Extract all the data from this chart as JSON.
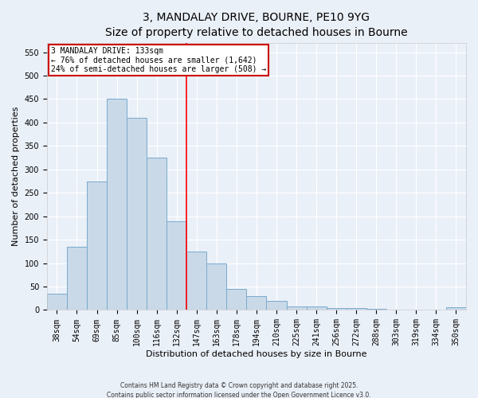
{
  "title": "3, MANDALAY DRIVE, BOURNE, PE10 9YG",
  "subtitle": "Size of property relative to detached houses in Bourne",
  "xlabel": "Distribution of detached houses by size in Bourne",
  "ylabel": "Number of detached properties",
  "categories": [
    "38sqm",
    "54sqm",
    "69sqm",
    "85sqm",
    "100sqm",
    "116sqm",
    "132sqm",
    "147sqm",
    "163sqm",
    "178sqm",
    "194sqm",
    "210sqm",
    "225sqm",
    "241sqm",
    "256sqm",
    "272sqm",
    "288sqm",
    "303sqm",
    "319sqm",
    "334sqm",
    "350sqm"
  ],
  "values": [
    35,
    135,
    275,
    450,
    410,
    325,
    190,
    125,
    100,
    45,
    30,
    20,
    7,
    8,
    5,
    4,
    2,
    1,
    1,
    1,
    6
  ],
  "bar_color": "#c9d9e8",
  "bar_edge_color": "#7aaacb",
  "bar_edge_width": 0.7,
  "red_line_x": 6.5,
  "annotation_text_line1": "3 MANDALAY DRIVE: 133sqm",
  "annotation_text_line2": "← 76% of detached houses are smaller (1,642)",
  "annotation_text_line3": "24% of semi-detached houses are larger (508) →",
  "annotation_box_color": "#cc0000",
  "ylim": [
    0,
    570
  ],
  "yticks": [
    0,
    50,
    100,
    150,
    200,
    250,
    300,
    350,
    400,
    450,
    500,
    550
  ],
  "background_color": "#eaf0f8",
  "grid_color": "#ffffff",
  "title_fontsize": 10,
  "axis_label_fontsize": 8,
  "tick_fontsize": 7,
  "footer_line1": "Contains HM Land Registry data © Crown copyright and database right 2025.",
  "footer_line2": "Contains public sector information licensed under the Open Government Licence v3.0."
}
